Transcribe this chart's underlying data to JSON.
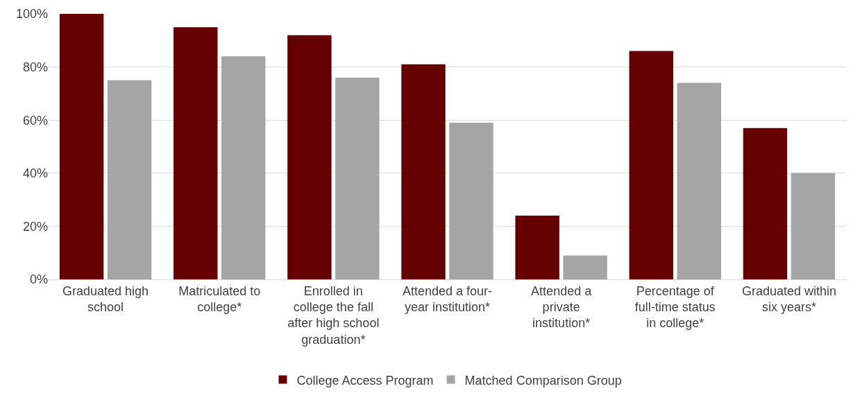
{
  "chart_data": {
    "type": "bar",
    "categories": [
      "Graduated high school",
      "Matriculated to college*",
      "Enrolled in college the fall after high school graduation*",
      "Attended a four-year institution*",
      "Attended a private institution*",
      "Percentage of full-time status in college*",
      "Graduated within six years*"
    ],
    "series": [
      {
        "name": "College Access Program",
        "color": "#660000",
        "values": [
          100,
          95,
          92,
          81,
          24,
          86,
          57
        ]
      },
      {
        "name": "Matched Comparison Group",
        "color": "#a5a5a5",
        "values": [
          75,
          84,
          76,
          59,
          9,
          74,
          40
        ]
      }
    ],
    "ylim": [
      0,
      100
    ],
    "yticks": [
      {
        "value": 0,
        "label": "0%"
      },
      {
        "value": 20,
        "label": "20%"
      },
      {
        "value": 40,
        "label": "40%"
      },
      {
        "value": 60,
        "label": "60%"
      },
      {
        "value": 80,
        "label": "80%"
      },
      {
        "value": 100,
        "label": "100%"
      }
    ],
    "grid": "y",
    "legend": "bottom"
  }
}
